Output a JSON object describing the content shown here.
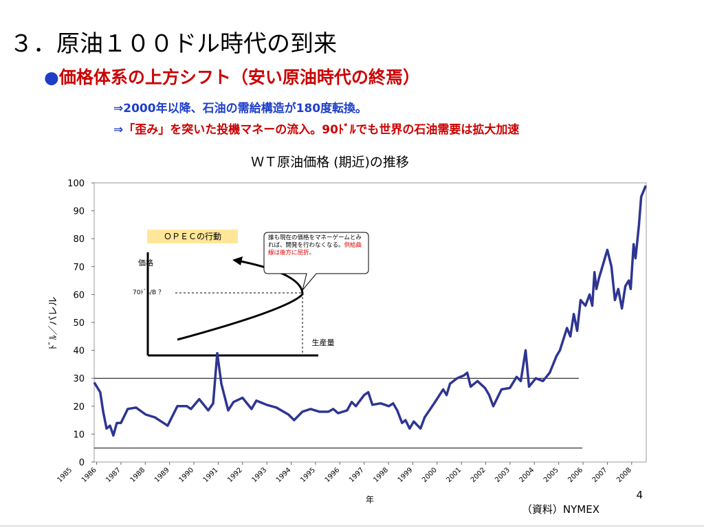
{
  "slide": {
    "title": "３．原油１００ドル時代の到来",
    "bullet": "●",
    "subtitle": "価格体系の上方シフト（安い原油時代の終焉）",
    "arrow1": "⇒",
    "point1": "2000年以降、石油の需給構造が180度転換。",
    "arrow2": "⇒",
    "point2": "「歪み」を突いた投機マネーの流入。90ﾄﾞﾙでも世界の石油需要は拡大加速",
    "page_number": "4",
    "source": "（資料）NYMEX"
  },
  "inset": {
    "box_label": "ＯＰＥＣの行動",
    "price_label": "価格",
    "price_level": "70ﾄﾞﾙ/B ？",
    "quantity_label": "生産量",
    "callout": "誰も現在の価格をマネーゲームとみれば、開発を行わなくなる。",
    "callout_emphasis": "供給曲線は後方に屈折。"
  },
  "chart_data": {
    "type": "line",
    "title": "ＷＴ原油価格 (期近)の推移",
    "y_label": "ﾄﾞﾙ／バレル",
    "x_label": "年",
    "color": "#2e3592",
    "xlim": [
      1985.9,
      2008.6
    ],
    "ylim": [
      0,
      100
    ],
    "yticks": [
      0,
      10,
      20,
      30,
      40,
      50,
      60,
      70,
      80,
      90,
      100
    ],
    "xticks": [
      1985,
      1986,
      1987,
      1988,
      1989,
      1990,
      1991,
      1992,
      1993,
      1994,
      1995,
      1996,
      1997,
      1998,
      1999,
      2000,
      2001,
      2002,
      2003,
      2004,
      2005,
      2006,
      2007,
      2008
    ],
    "reference_lines": [
      30,
      5
    ],
    "x": [
      1985.9,
      1986.15,
      1986.27,
      1986.41,
      1986.55,
      1986.69,
      1986.83,
      1987.0,
      1987.28,
      1987.62,
      1988.02,
      1988.39,
      1988.75,
      1988.92,
      1989.32,
      1989.71,
      1989.88,
      1990.22,
      1990.59,
      1990.79,
      1990.96,
      1991.13,
      1991.41,
      1991.63,
      1992.0,
      1992.37,
      1992.57,
      1992.99,
      1993.39,
      1993.89,
      1994.12,
      1994.46,
      1994.8,
      1995.17,
      1995.53,
      1995.73,
      1995.93,
      1996.3,
      1996.49,
      1996.66,
      1997.0,
      1997.17,
      1997.34,
      1997.68,
      1998.02,
      1998.19,
      1998.36,
      1998.56,
      1998.7,
      1998.87,
      1999.04,
      1999.32,
      1999.49,
      1999.88,
      2000.25,
      2000.39,
      2000.53,
      2000.82,
      2001.1,
      2001.24,
      2001.38,
      2001.66,
      2001.97,
      2002.14,
      2002.31,
      2002.65,
      2002.99,
      2003.27,
      2003.44,
      2003.64,
      2003.78,
      2004.06,
      2004.35,
      2004.63,
      2004.91,
      2005.05,
      2005.34,
      2005.48,
      2005.62,
      2005.76,
      2005.9,
      2006.1,
      2006.27,
      2006.38,
      2006.47,
      2006.55,
      2006.66,
      2006.83,
      2007.0,
      2007.17,
      2007.31,
      2007.45,
      2007.6,
      2007.74,
      2007.88,
      2007.96,
      2008.08,
      2008.16,
      2008.3,
      2008.39,
      2008.58
    ],
    "values": [
      28.5,
      25,
      18,
      12,
      13,
      9.5,
      14,
      14,
      19,
      19.5,
      17,
      16,
      14,
      13,
      20,
      20,
      19,
      22.5,
      18.5,
      21,
      39,
      28,
      18.5,
      21.5,
      23,
      19,
      22,
      20.5,
      19.5,
      17,
      15,
      18,
      19,
      18,
      18,
      19,
      17.5,
      18.5,
      21.5,
      20,
      24,
      25,
      20.5,
      21,
      20,
      21,
      18.5,
      14,
      15,
      12,
      14.5,
      12,
      16,
      21,
      26,
      24,
      28,
      30,
      31,
      32,
      27,
      29,
      26.5,
      24,
      20,
      26,
      26.5,
      30.5,
      29,
      40,
      27,
      30,
      29,
      32,
      38,
      40,
      48,
      45,
      53,
      47,
      58,
      56,
      60,
      56,
      68,
      62,
      66,
      71,
      76,
      70,
      58,
      62,
      55,
      63,
      65,
      62,
      78,
      73,
      85,
      95,
      99
    ]
  }
}
